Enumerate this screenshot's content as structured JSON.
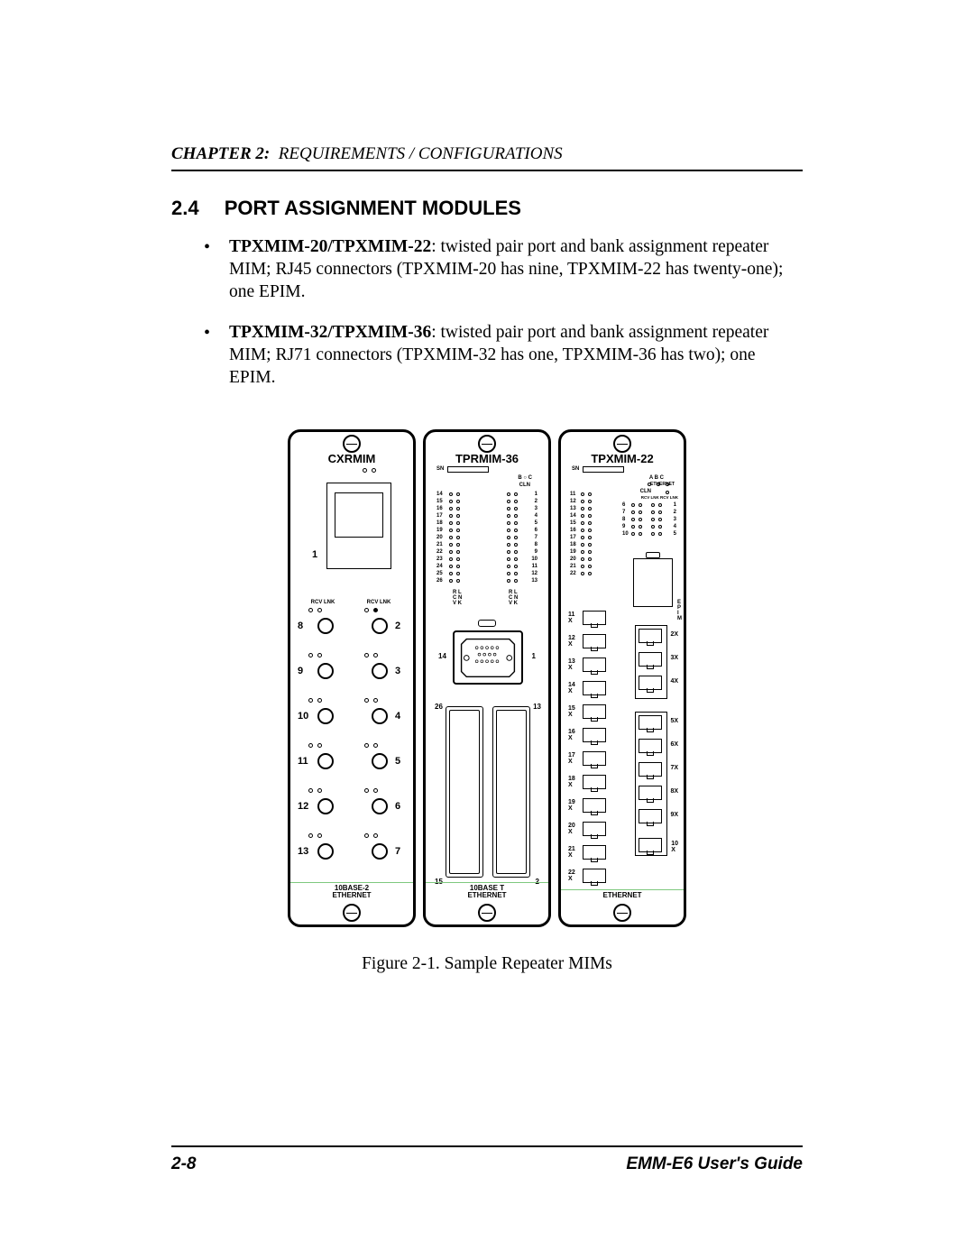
{
  "header": {
    "chapter_label": "CHAPTER 2:",
    "chapter_title": "REQUIREMENTS / CONFIGURATIONS"
  },
  "section": {
    "number": "2.4",
    "title": "PORT ASSIGNMENT MODULES"
  },
  "bullets": [
    {
      "lead": "TPXMIM-20/TPXMIM-22",
      "rest": ": twisted pair port and bank assignment repeater MIM; RJ45 connectors (TPXMIM-20 has nine, TPXMIM-22 has twenty-one); one EPIM."
    },
    {
      "lead": "TPXMIM-32/TPXMIM-36",
      "rest": ": twisted pair port and bank assignment repeater MIM; RJ71 connectors (TPXMIM-32 has one, TPXMIM-36 has two); one EPIM."
    }
  ],
  "figure": {
    "caption": "Figure 2-1.  Sample Repeater MIMs",
    "modules": {
      "cxrmim": {
        "title": "CXRMIM",
        "footer": "10BASE-2\nETHERNET",
        "big_port_label": "1",
        "rcv_lnk_label": "RCV  LNK",
        "ports_left": [
          "8",
          "9",
          "10",
          "11",
          "12",
          "13"
        ],
        "ports_right": [
          "2",
          "3",
          "4",
          "5",
          "6",
          "7"
        ]
      },
      "tprmim36": {
        "title": "TPRMIM-36",
        "footer": "10BASE T\nETHERNET",
        "sn_label": "SN",
        "bc_label": "B ○ C",
        "cln_label": "CLN",
        "row_labels_left": [
          "14",
          "15",
          "16",
          "17",
          "18",
          "19",
          "20",
          "21",
          "22",
          "23",
          "24",
          "25",
          "26"
        ],
        "row_labels_right": [
          "1",
          "2",
          "3",
          "4",
          "5",
          "6",
          "7",
          "8",
          "9",
          "10",
          "11",
          "12",
          "13"
        ],
        "rlcnvk": "R L\nC N\nV K",
        "db_left_label": "14",
        "db_right_label": "1",
        "conn_left_top": "26",
        "conn_right_top": "13",
        "conn_left_bot": "15",
        "conn_right_bot": "2"
      },
      "tpxmim22": {
        "title": "TPXMIM-22",
        "footer": "ETHERNET",
        "sn_label": "SN",
        "abc_label": "A  B  C",
        "ethernet_tiny": "ETHERNET",
        "cln_label": "CLN",
        "rcv_lnk_label": "RCV LNK RCV LNK",
        "left_col_labels": [
          "11",
          "12",
          "13",
          "14",
          "15",
          "16",
          "17",
          "18",
          "19",
          "20",
          "21",
          "22"
        ],
        "grid_right_rows": [
          "6",
          "7",
          "8",
          "9",
          "10"
        ],
        "grid_right_nums": [
          "1",
          "2",
          "3",
          "4",
          "5"
        ],
        "epim_label": "E\nP\nI\nM",
        "rj_left_labels": [
          "11\nX",
          "12\nX",
          "13\nX",
          "14\nX",
          "15\nX",
          "16\nX",
          "17\nX",
          "18\nX",
          "19\nX",
          "20\nX",
          "21\nX",
          "22\nX"
        ],
        "rj_right_labels": [
          "2X",
          "3X",
          "4X",
          "5X",
          "6X",
          "7X",
          "8X",
          "9X",
          "10\nX"
        ]
      }
    }
  },
  "footer": {
    "page": "2-8",
    "doc": "EMM-E6 User's Guide"
  },
  "colors": {
    "text": "#000000",
    "bg": "#ffffff",
    "accent": "#7fc97f"
  }
}
